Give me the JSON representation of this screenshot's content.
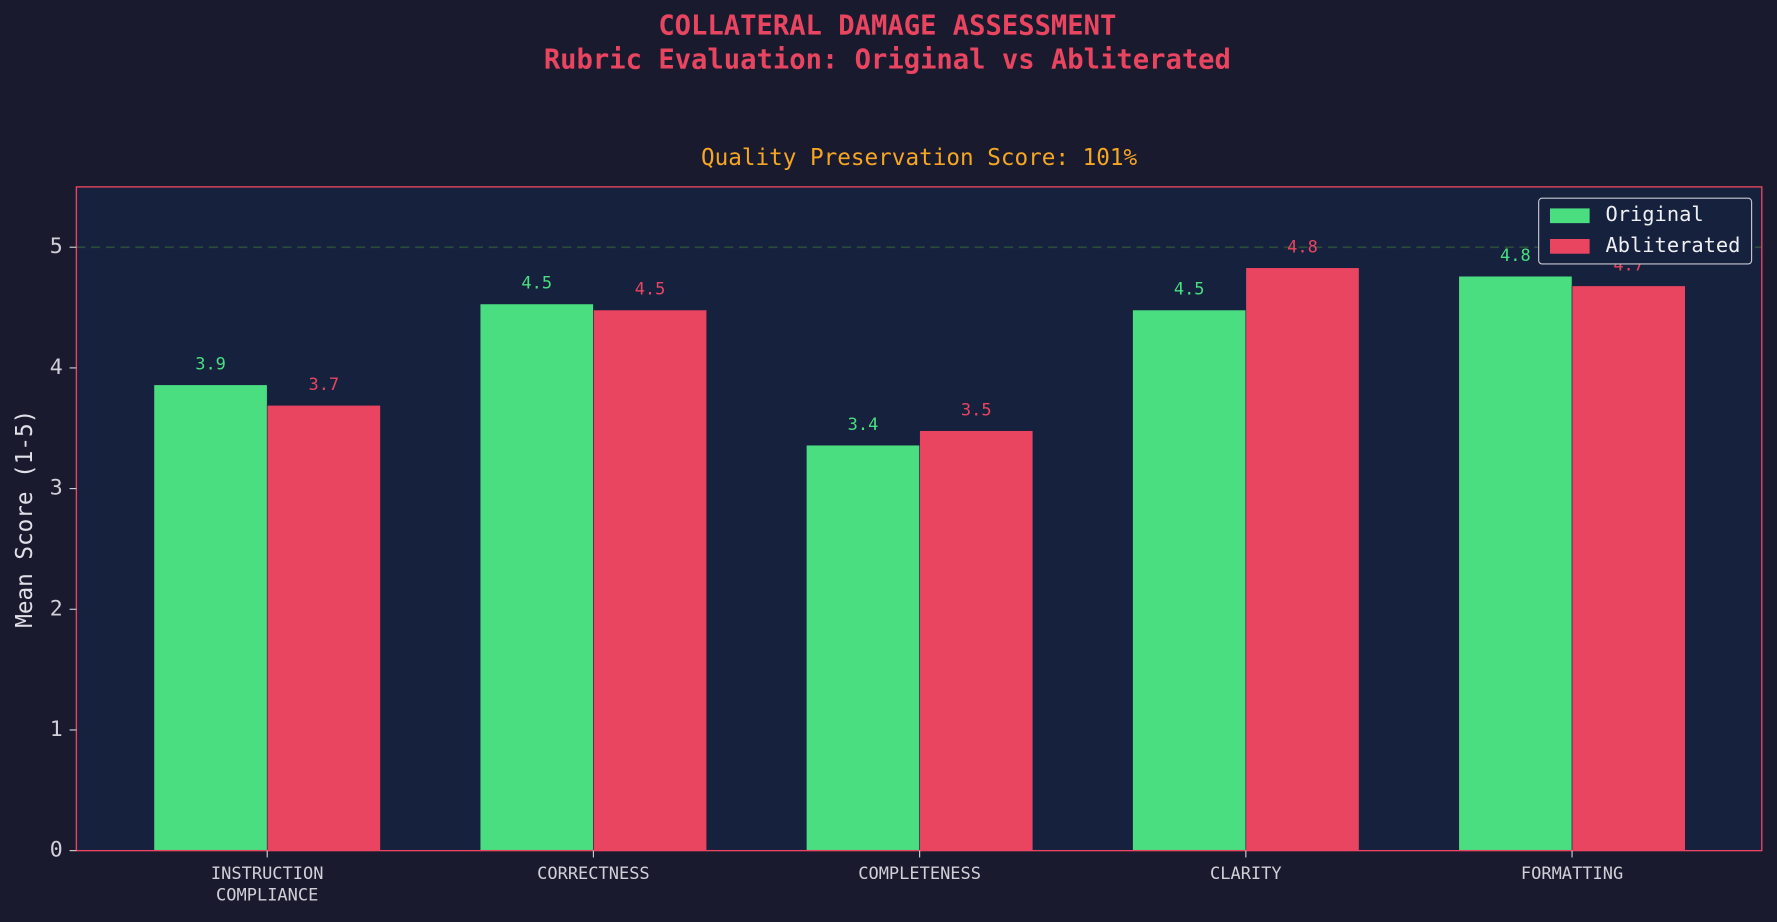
{
  "chart_data": {
    "type": "bar",
    "title": "COLLATERAL DAMAGE ASSESSMENT",
    "subtitle": "Rubric Evaluation: Original vs Abliterated",
    "axes_title": "Quality Preservation Score: 101%",
    "y_label": "Mean Score (1-5)",
    "categories": [
      "INSTRUCTION COMPLIANCE",
      "CORRECTNESS",
      "COMPLETENESS",
      "CLARITY",
      "FORMATTING"
    ],
    "series": [
      {
        "name": "Original",
        "color": "#4ade80",
        "values": [
          3.86,
          4.53,
          3.36,
          4.48,
          4.76
        ],
        "value_labels": [
          "3.9",
          "4.5",
          "3.4",
          "4.5",
          "4.8"
        ]
      },
      {
        "name": "Abliterated",
        "color": "#e94560",
        "values": [
          3.69,
          4.48,
          3.48,
          4.83,
          4.68
        ],
        "value_labels": [
          "3.7",
          "4.5",
          "3.5",
          "4.8",
          "4.7"
        ]
      }
    ],
    "ylim": [
      0,
      5.5
    ],
    "yticks": [
      0,
      1,
      2,
      3,
      4,
      5
    ],
    "reference_line": 5,
    "legend": "upper right"
  }
}
